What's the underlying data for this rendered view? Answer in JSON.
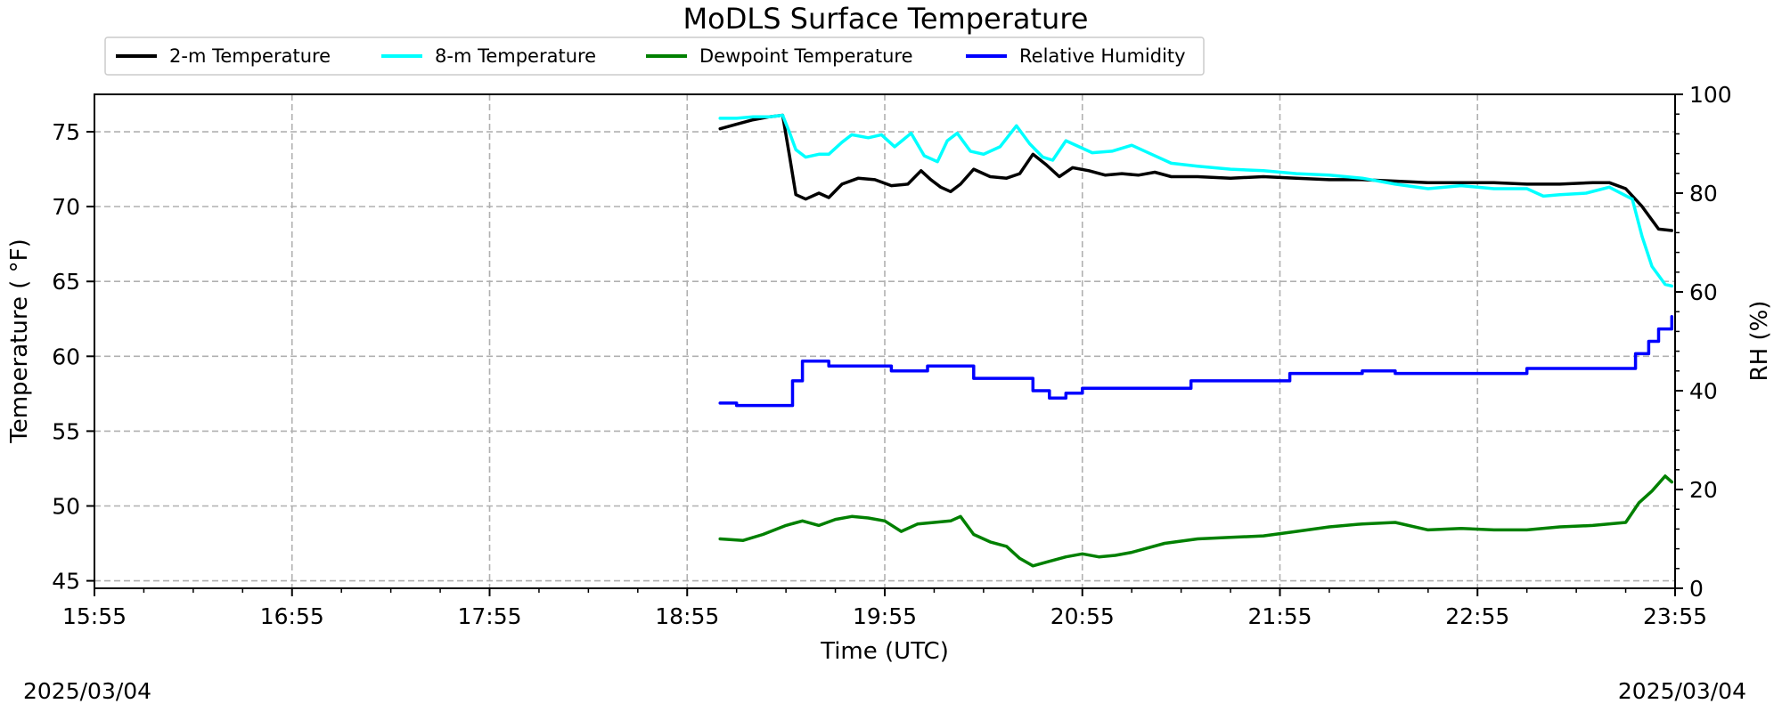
{
  "chart_data": {
    "type": "line",
    "title": "MoDLS Surface Temperature",
    "xlabel": "Time (UTC)",
    "ylabel": "Temperature ( °F)",
    "y2label": "RH (%)",
    "date_left": "2025/03/04",
    "date_right": "2025/03/04",
    "x_ticks": [
      "15:55",
      "16:55",
      "17:55",
      "18:55",
      "19:55",
      "20:55",
      "21:55",
      "22:55",
      "23:55"
    ],
    "xlim": [
      "15:55",
      "23:55"
    ],
    "ylim": [
      44.5,
      77.5
    ],
    "y_ticks": [
      45,
      50,
      55,
      60,
      65,
      70,
      75
    ],
    "y2lim": [
      0,
      100
    ],
    "y2_ticks": [
      0,
      20,
      40,
      60,
      80,
      100
    ],
    "grid": true,
    "legend_position": "top-left, above plot",
    "series": [
      {
        "name": "2-m Temperature",
        "color": "#000000",
        "axis": "left",
        "points": [
          [
            "19:05",
            75.2
          ],
          [
            "19:10",
            75.5
          ],
          [
            "19:15",
            75.8
          ],
          [
            "19:20",
            76.0
          ],
          [
            "19:24",
            76.1
          ],
          [
            "19:26",
            73.5
          ],
          [
            "19:28",
            70.8
          ],
          [
            "19:31",
            70.5
          ],
          [
            "19:35",
            70.9
          ],
          [
            "19:38",
            70.6
          ],
          [
            "19:42",
            71.5
          ],
          [
            "19:47",
            71.9
          ],
          [
            "19:52",
            71.8
          ],
          [
            "19:57",
            71.4
          ],
          [
            "20:02",
            71.5
          ],
          [
            "20:06",
            72.4
          ],
          [
            "20:09",
            71.8
          ],
          [
            "20:12",
            71.3
          ],
          [
            "20:15",
            71.0
          ],
          [
            "20:18",
            71.5
          ],
          [
            "20:22",
            72.5
          ],
          [
            "20:27",
            72.0
          ],
          [
            "20:32",
            71.9
          ],
          [
            "20:36",
            72.2
          ],
          [
            "20:40",
            73.5
          ],
          [
            "20:44",
            72.8
          ],
          [
            "20:48",
            72.0
          ],
          [
            "20:52",
            72.6
          ],
          [
            "20:57",
            72.4
          ],
          [
            "21:02",
            72.1
          ],
          [
            "21:07",
            72.2
          ],
          [
            "21:12",
            72.1
          ],
          [
            "21:17",
            72.3
          ],
          [
            "21:22",
            72.0
          ],
          [
            "21:30",
            72.0
          ],
          [
            "21:40",
            71.9
          ],
          [
            "21:50",
            72.0
          ],
          [
            "22:00",
            71.9
          ],
          [
            "22:10",
            71.8
          ],
          [
            "22:20",
            71.8
          ],
          [
            "22:30",
            71.7
          ],
          [
            "22:40",
            71.6
          ],
          [
            "22:50",
            71.6
          ],
          [
            "23:00",
            71.6
          ],
          [
            "23:10",
            71.5
          ],
          [
            "23:20",
            71.5
          ],
          [
            "23:30",
            71.6
          ],
          [
            "23:35",
            71.6
          ],
          [
            "23:40",
            71.2
          ],
          [
            "23:45",
            70.0
          ],
          [
            "23:50",
            68.5
          ],
          [
            "23:54",
            68.4
          ]
        ]
      },
      {
        "name": "8-m Temperature",
        "color": "#00ffff",
        "axis": "left",
        "points": [
          [
            "19:05",
            75.9
          ],
          [
            "19:10",
            75.9
          ],
          [
            "19:15",
            76.0
          ],
          [
            "19:20",
            76.0
          ],
          [
            "19:24",
            76.1
          ],
          [
            "19:26",
            75.0
          ],
          [
            "19:28",
            73.8
          ],
          [
            "19:31",
            73.3
          ],
          [
            "19:35",
            73.5
          ],
          [
            "19:38",
            73.5
          ],
          [
            "19:42",
            74.3
          ],
          [
            "19:45",
            74.8
          ],
          [
            "19:50",
            74.6
          ],
          [
            "19:54",
            74.8
          ],
          [
            "19:58",
            74.0
          ],
          [
            "20:03",
            74.9
          ],
          [
            "20:07",
            73.4
          ],
          [
            "20:11",
            73.0
          ],
          [
            "20:14",
            74.4
          ],
          [
            "20:17",
            74.9
          ],
          [
            "20:21",
            73.7
          ],
          [
            "20:25",
            73.5
          ],
          [
            "20:30",
            74.0
          ],
          [
            "20:35",
            75.4
          ],
          [
            "20:39",
            74.2
          ],
          [
            "20:43",
            73.3
          ],
          [
            "20:46",
            73.1
          ],
          [
            "20:50",
            74.4
          ],
          [
            "20:54",
            74.0
          ],
          [
            "20:58",
            73.6
          ],
          [
            "21:04",
            73.7
          ],
          [
            "21:10",
            74.1
          ],
          [
            "21:16",
            73.5
          ],
          [
            "21:22",
            72.9
          ],
          [
            "21:30",
            72.7
          ],
          [
            "21:40",
            72.5
          ],
          [
            "21:50",
            72.4
          ],
          [
            "22:00",
            72.2
          ],
          [
            "22:10",
            72.1
          ],
          [
            "22:20",
            71.9
          ],
          [
            "22:30",
            71.5
          ],
          [
            "22:40",
            71.2
          ],
          [
            "22:50",
            71.4
          ],
          [
            "23:00",
            71.2
          ],
          [
            "23:10",
            71.2
          ],
          [
            "23:15",
            70.7
          ],
          [
            "23:20",
            70.8
          ],
          [
            "23:28",
            70.9
          ],
          [
            "23:35",
            71.3
          ],
          [
            "23:42",
            70.5
          ],
          [
            "23:45",
            68.0
          ],
          [
            "23:48",
            66.0
          ],
          [
            "23:52",
            64.8
          ],
          [
            "23:54",
            64.7
          ]
        ]
      },
      {
        "name": "Dewpoint Temperature",
        "color": "#008000",
        "axis": "left",
        "points": [
          [
            "19:05",
            47.8
          ],
          [
            "19:12",
            47.7
          ],
          [
            "19:18",
            48.1
          ],
          [
            "19:25",
            48.7
          ],
          [
            "19:30",
            49.0
          ],
          [
            "19:35",
            48.7
          ],
          [
            "19:40",
            49.1
          ],
          [
            "19:45",
            49.3
          ],
          [
            "19:50",
            49.2
          ],
          [
            "19:55",
            49.0
          ],
          [
            "20:00",
            48.3
          ],
          [
            "20:05",
            48.8
          ],
          [
            "20:10",
            48.9
          ],
          [
            "20:15",
            49.0
          ],
          [
            "20:18",
            49.3
          ],
          [
            "20:22",
            48.1
          ],
          [
            "20:27",
            47.6
          ],
          [
            "20:32",
            47.3
          ],
          [
            "20:36",
            46.5
          ],
          [
            "20:40",
            46.0
          ],
          [
            "20:45",
            46.3
          ],
          [
            "20:50",
            46.6
          ],
          [
            "20:55",
            46.8
          ],
          [
            "21:00",
            46.6
          ],
          [
            "21:05",
            46.7
          ],
          [
            "21:10",
            46.9
          ],
          [
            "21:20",
            47.5
          ],
          [
            "21:30",
            47.8
          ],
          [
            "21:40",
            47.9
          ],
          [
            "21:50",
            48.0
          ],
          [
            "22:00",
            48.3
          ],
          [
            "22:10",
            48.6
          ],
          [
            "22:20",
            48.8
          ],
          [
            "22:30",
            48.9
          ],
          [
            "22:40",
            48.4
          ],
          [
            "22:50",
            48.5
          ],
          [
            "23:00",
            48.4
          ],
          [
            "23:10",
            48.4
          ],
          [
            "23:20",
            48.6
          ],
          [
            "23:30",
            48.7
          ],
          [
            "23:40",
            48.9
          ],
          [
            "23:44",
            50.2
          ],
          [
            "23:48",
            51.0
          ],
          [
            "23:50",
            51.5
          ],
          [
            "23:52",
            52.0
          ],
          [
            "23:54",
            51.6
          ]
        ]
      },
      {
        "name": "Relative Humidity",
        "color": "#0000ff",
        "axis": "right",
        "points": [
          [
            "19:05",
            37.5
          ],
          [
            "19:10",
            37.0
          ],
          [
            "19:24",
            37.0
          ],
          [
            "19:27",
            42.0
          ],
          [
            "19:30",
            46.0
          ],
          [
            "19:35",
            46.0
          ],
          [
            "19:38",
            45.0
          ],
          [
            "19:50",
            45.0
          ],
          [
            "19:57",
            44.0
          ],
          [
            "20:02",
            44.0
          ],
          [
            "20:08",
            45.0
          ],
          [
            "20:18",
            45.0
          ],
          [
            "20:22",
            42.5
          ],
          [
            "20:37",
            42.5
          ],
          [
            "20:40",
            40.0
          ],
          [
            "20:45",
            38.5
          ],
          [
            "20:50",
            39.5
          ],
          [
            "20:55",
            40.5
          ],
          [
            "21:25",
            40.5
          ],
          [
            "21:28",
            42.0
          ],
          [
            "21:55",
            42.0
          ],
          [
            "21:58",
            43.5
          ],
          [
            "22:15",
            43.5
          ],
          [
            "22:20",
            44.0
          ],
          [
            "22:30",
            43.5
          ],
          [
            "22:40",
            43.5
          ],
          [
            "22:50",
            43.5
          ],
          [
            "23:00",
            43.5
          ],
          [
            "23:10",
            44.5
          ],
          [
            "23:40",
            44.5
          ],
          [
            "23:43",
            47.5
          ],
          [
            "23:47",
            50.0
          ],
          [
            "23:50",
            52.5
          ],
          [
            "23:54",
            55.0
          ]
        ]
      }
    ]
  }
}
